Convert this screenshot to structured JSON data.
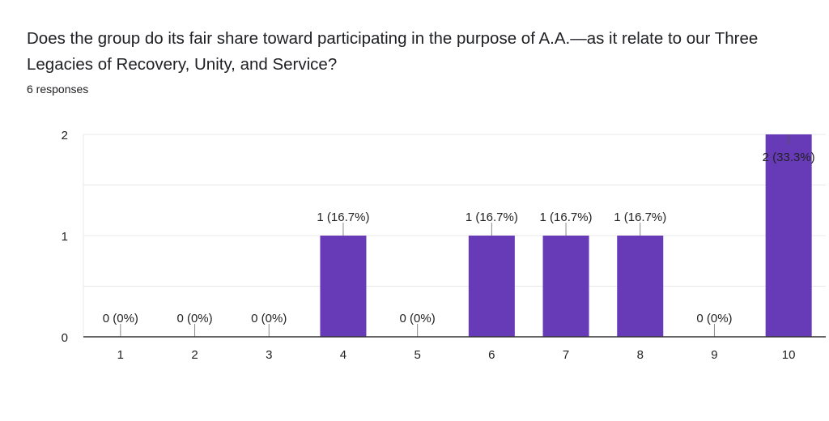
{
  "question": {
    "title": "Does the group do its fair share toward participating in the purpose of A.A.—as it relate to our Three Legacies of Recovery, Unity, and Service?",
    "responses_label": "6 responses"
  },
  "colors": {
    "bar": "#673ab7",
    "grid": "#e8e8e8",
    "axis": "#333333",
    "text": "#222222"
  },
  "chart_data": {
    "type": "bar",
    "categories": [
      "1",
      "2",
      "3",
      "4",
      "5",
      "6",
      "7",
      "8",
      "9",
      "10"
    ],
    "values": [
      0,
      0,
      0,
      1,
      0,
      1,
      1,
      1,
      0,
      2
    ],
    "data_labels": [
      "0 (0%)",
      "0 (0%)",
      "0 (0%)",
      "1 (16.7%)",
      "0 (0%)",
      "1 (16.7%)",
      "1 (16.7%)",
      "1 (16.7%)",
      "0 (0%)",
      "2 (33.3%)"
    ],
    "y_ticks": [
      "0",
      "1",
      "2"
    ],
    "ylim": [
      0,
      2
    ],
    "grid": true,
    "legend": "none"
  }
}
